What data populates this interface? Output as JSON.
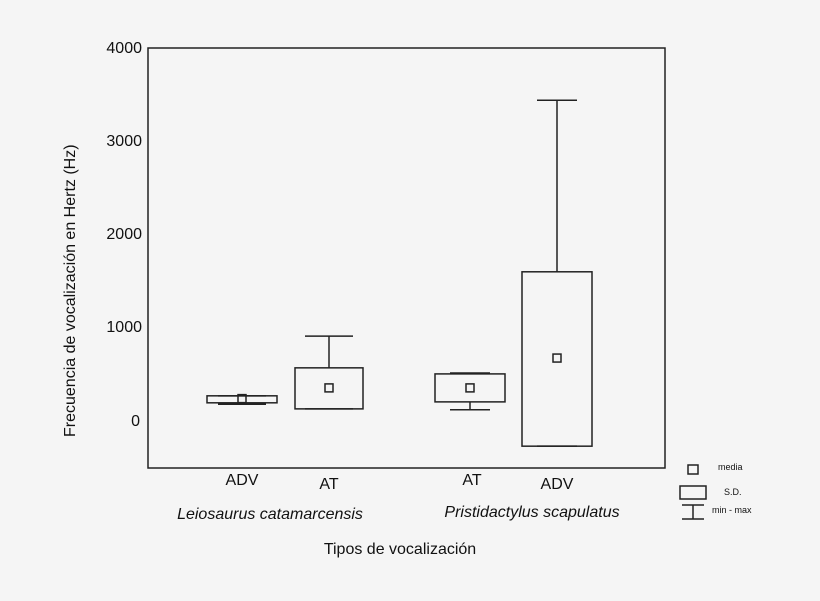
{
  "chart_data": {
    "type": "boxplot",
    "title": "",
    "xlabel": "Tipos de vocalización",
    "ylabel": "Frecuencia de vocalización en Hertz (Hz)",
    "ylim": [
      -500,
      4000
    ],
    "yticks": [
      0,
      1000,
      2000,
      3000,
      4000
    ],
    "grid": false,
    "groups": [
      {
        "name": "Leiosaurus catamarcensis",
        "categories": [
          "ADV",
          "AT"
        ]
      },
      {
        "name": "Pristidactylus scapulatus",
        "categories": [
          "AT",
          "ADV"
        ]
      }
    ],
    "series": [
      {
        "group": "Leiosaurus catamarcensis",
        "category": "ADV",
        "mean": 240,
        "sd_low": 195,
        "sd_high": 270,
        "min": 180,
        "max": 270
      },
      {
        "group": "Leiosaurus catamarcensis",
        "category": "AT",
        "mean": 355,
        "sd_low": 130,
        "sd_high": 570,
        "min": 130,
        "max": 910
      },
      {
        "group": "Pristidactylus scapulatus",
        "category": "AT",
        "mean": 355,
        "sd_low": 205,
        "sd_high": 505,
        "min": 120,
        "max": 515
      },
      {
        "group": "Pristidactylus scapulatus",
        "category": "ADV",
        "mean": 675,
        "sd_low": -270,
        "sd_high": 1600,
        "min": -270,
        "max": 3440
      }
    ],
    "legend": {
      "position": "bottom-right",
      "entries": [
        {
          "symbol": "square",
          "label": "media"
        },
        {
          "symbol": "box",
          "label": "S.D."
        },
        {
          "symbol": "whisker",
          "label": "min - max"
        }
      ]
    }
  },
  "labels": {
    "yticks": [
      "4000",
      "3000",
      "2000",
      "1000",
      "0"
    ],
    "xticks": [
      "ADV",
      "AT",
      "AT",
      "ADV"
    ],
    "group1": "Leiosaurus catamarcensis",
    "group2": "Pristidactylus scapulatus",
    "xlabel": "Tipos de vocalización",
    "ylabel": "Frecuencia de vocalización en Hertz (Hz)",
    "legend": {
      "media": "media",
      "sd": "S.D.",
      "minmax": "min - max"
    }
  },
  "colors": {
    "line": "#222222",
    "background": "#f5f5f5"
  }
}
